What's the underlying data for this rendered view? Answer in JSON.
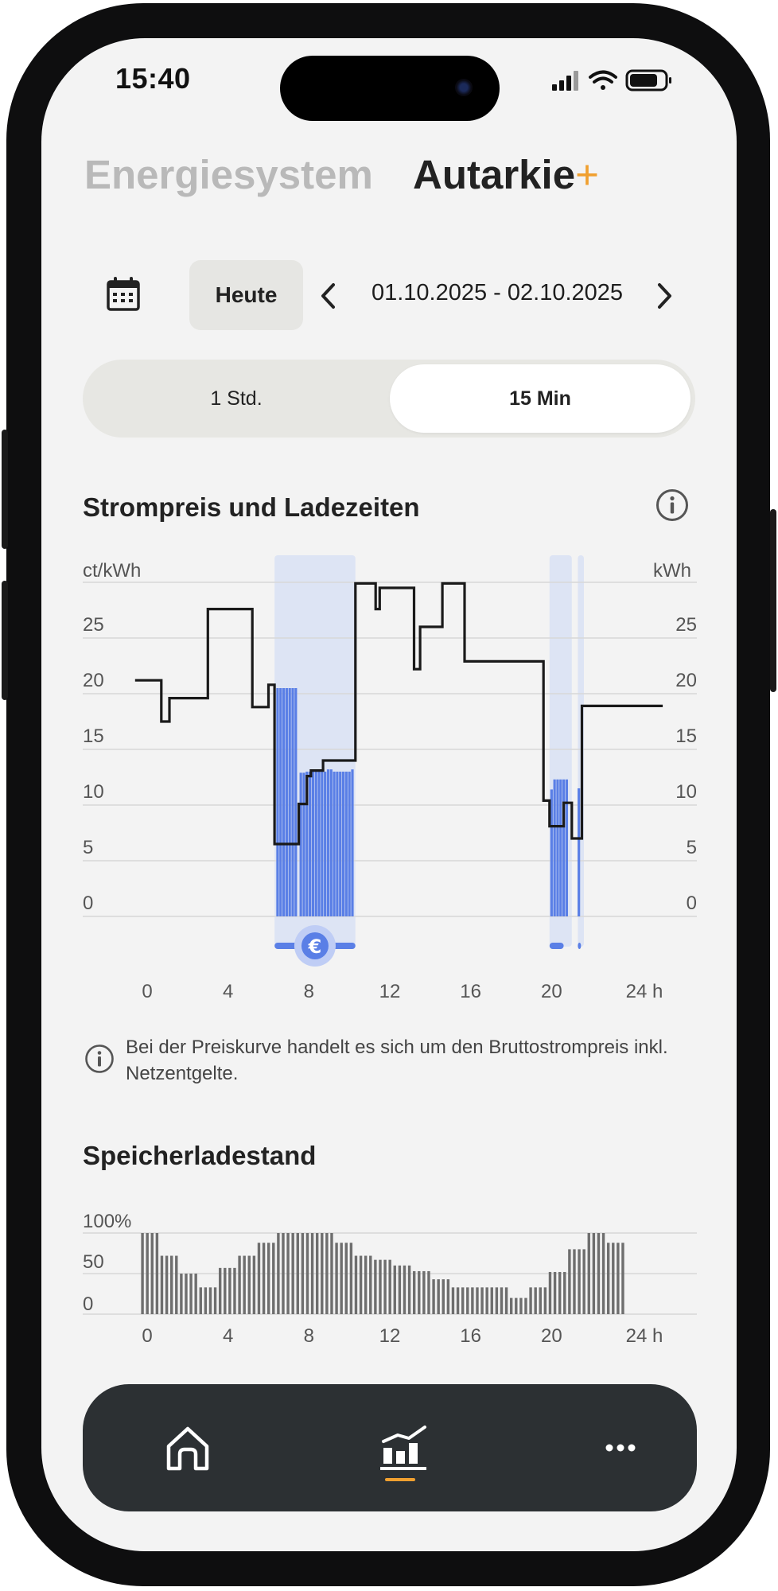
{
  "status_bar": {
    "time": "15:40"
  },
  "header": {
    "tab_inactive": "Energiesystem",
    "tab_active": "Autarkie",
    "tab_active_suffix": "+"
  },
  "date_nav": {
    "today_label": "Heute",
    "range": "01.10.2025 - 02.10.2025"
  },
  "interval_toggle": {
    "options": [
      "1 Std.",
      "15 Min"
    ],
    "selected": "15 Min"
  },
  "price_section": {
    "title": "Strompreis und Ladezeiten",
    "note": "Bei der Preiskurve handelt es sich um den Bruttostrompreis inkl. Netzentgelte."
  },
  "soc_section": {
    "title": "Speicherladestand"
  },
  "bottom_nav": {
    "items": [
      "home-icon",
      "chart-icon",
      "more-icon"
    ],
    "active": "chart-icon"
  },
  "colors": {
    "accent": "#f0a030",
    "charge_bar": "#5a7fe6",
    "charge_window": "#dde4f4",
    "price_line": "#1a1a1a",
    "soc_bar": "#6e6e6e"
  },
  "chart_data": [
    {
      "type": "line",
      "title": "Strompreis und Ladezeiten",
      "ylabel": "ct/kWh",
      "y2label": "kWh",
      "ylim": [
        0,
        30
      ],
      "xlim": [
        0,
        24
      ],
      "xticks": [
        "0",
        "4",
        "8",
        "12",
        "16",
        "20",
        "24 h"
      ],
      "xtick_values": [
        0,
        4,
        8,
        12,
        16,
        20,
        24
      ],
      "yticks": [
        "0",
        "5",
        "10",
        "15",
        "20",
        "25"
      ],
      "ytick_values": [
        0,
        5,
        10,
        15,
        20,
        25
      ],
      "grid": true,
      "price_step": [
        [
          -0.6,
          21.2
        ],
        [
          0.7,
          21.2
        ],
        [
          0.7,
          17.5
        ],
        [
          1.1,
          17.5
        ],
        [
          1.1,
          19.6
        ],
        [
          3.0,
          19.6
        ],
        [
          3.0,
          27.6
        ],
        [
          5.2,
          27.6
        ],
        [
          5.2,
          18.8
        ],
        [
          6.0,
          18.8
        ],
        [
          6.0,
          20.8
        ],
        [
          6.3,
          20.8
        ],
        [
          6.3,
          6.5
        ],
        [
          7.5,
          6.5
        ],
        [
          7.5,
          10.1
        ],
        [
          7.9,
          10.1
        ],
        [
          7.9,
          12.6
        ],
        [
          8.1,
          12.6
        ],
        [
          8.1,
          13.1
        ],
        [
          8.7,
          13.1
        ],
        [
          8.7,
          14.0
        ],
        [
          10.3,
          14.0
        ],
        [
          10.3,
          29.9
        ],
        [
          11.3,
          29.9
        ],
        [
          11.3,
          27.6
        ],
        [
          11.5,
          27.6
        ],
        [
          11.5,
          29.5
        ],
        [
          13.2,
          29.5
        ],
        [
          13.2,
          22.2
        ],
        [
          13.5,
          22.2
        ],
        [
          13.5,
          26.0
        ],
        [
          14.6,
          26.0
        ],
        [
          14.6,
          29.9
        ],
        [
          15.7,
          29.9
        ],
        [
          15.7,
          22.9
        ],
        [
          19.6,
          22.9
        ],
        [
          19.6,
          10.4
        ],
        [
          19.9,
          10.4
        ],
        [
          19.9,
          8.1
        ],
        [
          20.6,
          8.1
        ],
        [
          20.6,
          10.2
        ],
        [
          21.0,
          10.2
        ],
        [
          21.0,
          7.0
        ],
        [
          21.5,
          7.0
        ],
        [
          21.5,
          18.9
        ],
        [
          25.5,
          18.9
        ]
      ],
      "charge_windows": [
        [
          6.3,
          10.3
        ],
        [
          19.9,
          21.0
        ],
        [
          21.3,
          21.6
        ]
      ],
      "charge_bars": [
        [
          6.45,
          20.5
        ],
        [
          6.6,
          20.5
        ],
        [
          6.75,
          20.5
        ],
        [
          6.9,
          20.5
        ],
        [
          7.05,
          20.5
        ],
        [
          7.2,
          20.5
        ],
        [
          7.35,
          20.5
        ],
        [
          7.6,
          12.9
        ],
        [
          7.75,
          12.9
        ],
        [
          7.9,
          13.0
        ],
        [
          8.05,
          13.0
        ],
        [
          8.2,
          13.2
        ],
        [
          8.35,
          13.2
        ],
        [
          8.5,
          13.2
        ],
        [
          8.65,
          13.0
        ],
        [
          8.8,
          13.0
        ],
        [
          8.95,
          13.2
        ],
        [
          9.1,
          13.2
        ],
        [
          9.25,
          13.0
        ],
        [
          9.4,
          13.0
        ],
        [
          9.55,
          13.0
        ],
        [
          9.7,
          13.0
        ],
        [
          9.85,
          13.0
        ],
        [
          10.0,
          13.0
        ],
        [
          10.15,
          13.2
        ],
        [
          20.0,
          11.4
        ],
        [
          20.15,
          12.3
        ],
        [
          20.3,
          12.3
        ],
        [
          20.45,
          12.3
        ],
        [
          20.6,
          12.3
        ],
        [
          20.75,
          12.3
        ],
        [
          21.35,
          11.5
        ]
      ],
      "charging_markers": [
        [
          6.3,
          10.3
        ],
        [
          19.9,
          20.6
        ],
        [
          21.3,
          21.4
        ]
      ]
    },
    {
      "type": "bar",
      "title": "Speicherladestand",
      "ylim": [
        0,
        100
      ],
      "yticks": [
        "100%",
        "50",
        "0"
      ],
      "ytick_values": [
        100,
        50,
        0
      ],
      "xticks": [
        "0",
        "4",
        "8",
        "12",
        "16",
        "20",
        "24 h"
      ],
      "xtick_values": [
        0,
        4,
        8,
        12,
        16,
        20,
        24
      ],
      "bar_start": -0.3,
      "bar_step": 0.24,
      "values": [
        100,
        100,
        100,
        100,
        72,
        72,
        72,
        72,
        50,
        50,
        50,
        50,
        33,
        33,
        33,
        33,
        57,
        57,
        57,
        57,
        72,
        72,
        72,
        72,
        88,
        88,
        88,
        88,
        100,
        100,
        100,
        100,
        100,
        100,
        100,
        100,
        100,
        100,
        100,
        100,
        88,
        88,
        88,
        88,
        72,
        72,
        72,
        72,
        67,
        67,
        67,
        67,
        60,
        60,
        60,
        60,
        53,
        53,
        53,
        53,
        43,
        43,
        43,
        43,
        33,
        33,
        33,
        33,
        33,
        33,
        33,
        33,
        33,
        33,
        33,
        33,
        20,
        20,
        20,
        20,
        33,
        33,
        33,
        33,
        52,
        52,
        52,
        52,
        80,
        80,
        80,
        80,
        100,
        100,
        100,
        100,
        88,
        88,
        88,
        88
      ]
    }
  ]
}
